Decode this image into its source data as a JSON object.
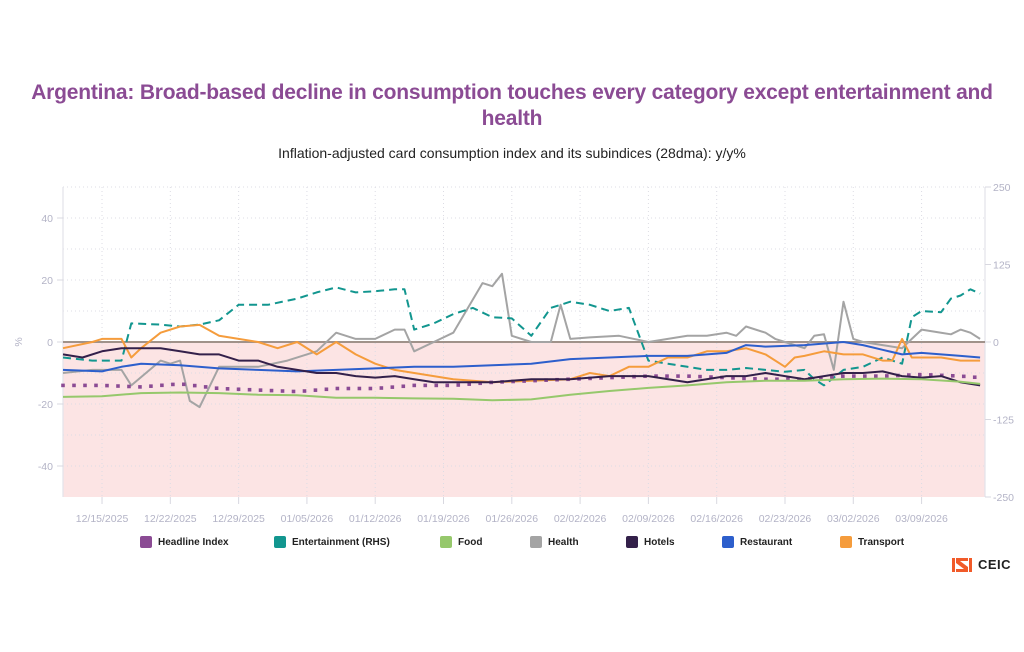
{
  "header": {
    "title": "Argentina: Broad-based decline in consumption touches every category except entertainment and health",
    "subtitle": "Inflation-adjusted card consumption index and its subindices (28dma): y/y%"
  },
  "brand": {
    "logo_text": "CEIC",
    "logo_color": "#f15a29"
  },
  "chart_data": {
    "type": "line",
    "title": "Argentina: Broad-based decline in consumption touches every category except entertainment and health",
    "subtitle": "Inflation-adjusted card consumption index and its subindices (28dma): y/y%",
    "xlabel": "",
    "ylabel": "%",
    "ylabel_right": "",
    "x_start_date": "12/11/2025",
    "x_unit": "days since 12/11/2025",
    "xlim": [
      0,
      94.5
    ],
    "ylim": [
      -50,
      50
    ],
    "ylim_right": [
      -250,
      250
    ],
    "y_ticks": [
      40,
      20,
      0,
      -20,
      -40
    ],
    "y_ticks_right": [
      250,
      125,
      0,
      -125,
      -250
    ],
    "x_ticks": [
      {
        "day": 4,
        "label": "12/15/2025"
      },
      {
        "day": 11,
        "label": "12/22/2025"
      },
      {
        "day": 18,
        "label": "12/29/2025"
      },
      {
        "day": 25,
        "label": "01/05/2026"
      },
      {
        "day": 32,
        "label": "01/12/2026"
      },
      {
        "day": 39,
        "label": "01/19/2026"
      },
      {
        "day": 46,
        "label": "01/26/2026"
      },
      {
        "day": 53,
        "label": "02/02/2026"
      },
      {
        "day": 60,
        "label": "02/09/2026"
      },
      {
        "day": 67,
        "label": "02/16/2026"
      },
      {
        "day": 74,
        "label": "02/23/2026"
      },
      {
        "day": 81,
        "label": "03/02/2026"
      },
      {
        "day": 88,
        "label": "03/09/2026"
      }
    ],
    "grid": true,
    "negative_region_shaded": true,
    "legend_position": "bottom",
    "series": [
      {
        "name": "Headline Index",
        "color": "#8b4b94",
        "style": "dotted",
        "axis": "left",
        "x": [
          0,
          4,
          8,
          12,
          16,
          20,
          24,
          28,
          32,
          36,
          40,
          44,
          48,
          52,
          56,
          60,
          64,
          68,
          72,
          76,
          80,
          84,
          88,
          92,
          94
        ],
        "values": [
          -14,
          -14,
          -14.5,
          -13.5,
          -15,
          -15.5,
          -16,
          -15,
          -15,
          -14,
          -14,
          -13,
          -12.5,
          -12,
          -11.5,
          -11,
          -11,
          -11.5,
          -12,
          -12,
          -11,
          -11,
          -10.5,
          -11,
          -11.5
        ]
      },
      {
        "name": "Entertainment (RHS)",
        "color": "#12968f",
        "style": "dashed",
        "axis": "right",
        "x": [
          0,
          3,
          6,
          7,
          10,
          12,
          14,
          16,
          18,
          21,
          24,
          26,
          28,
          30,
          32,
          34,
          35,
          36,
          38,
          40,
          42,
          44,
          46,
          48,
          50,
          52,
          54,
          56,
          58,
          60,
          62,
          64,
          66,
          68,
          70,
          72,
          74,
          76,
          77,
          78,
          80,
          82,
          84,
          85,
          86,
          87,
          88,
          90,
          91,
          92,
          93,
          94
        ],
        "values": [
          -25,
          -30,
          -30,
          30,
          28,
          25,
          28,
          35,
          60,
          60,
          70,
          80,
          88,
          80,
          82,
          85,
          85,
          20,
          30,
          45,
          55,
          40,
          38,
          10,
          55,
          65,
          60,
          50,
          55,
          -30,
          -35,
          -40,
          -45,
          -45,
          -42,
          -45,
          -48,
          -45,
          -60,
          -70,
          -45,
          -40,
          -25,
          -30,
          -35,
          40,
          50,
          48,
          70,
          75,
          85,
          78
        ]
      },
      {
        "name": "Food",
        "color": "#96c86c",
        "style": "solid",
        "axis": "left",
        "x": [
          0,
          4,
          8,
          12,
          16,
          20,
          24,
          28,
          32,
          36,
          40,
          44,
          48,
          52,
          56,
          60,
          64,
          68,
          72,
          76,
          80,
          84,
          88,
          92,
          94
        ],
        "values": [
          -17.7,
          -17.5,
          -16.5,
          -16.3,
          -16.5,
          -17,
          -17.2,
          -18,
          -18,
          -18.2,
          -18.3,
          -18.8,
          -18.5,
          -17,
          -15.8,
          -14.8,
          -14,
          -13,
          -12.5,
          -12.5,
          -12,
          -11.8,
          -12,
          -12.8,
          -13.5
        ]
      },
      {
        "name": "Health",
        "color": "#a4a4a4",
        "style": "solid",
        "axis": "left",
        "x": [
          0,
          3,
          6,
          7,
          10,
          11,
          12,
          13,
          14,
          16,
          20,
          23,
          26,
          28,
          30,
          32,
          34,
          35,
          36,
          38,
          40,
          43,
          44,
          45,
          46,
          48,
          50,
          51,
          52,
          54,
          57,
          60,
          62,
          64,
          66,
          68,
          69,
          70,
          72,
          73,
          74,
          76,
          77,
          78,
          79,
          80,
          81,
          82,
          84,
          86,
          87,
          88,
          90,
          91,
          92,
          93,
          94
        ],
        "values": [
          -10,
          -9,
          -9,
          -14,
          -6,
          -7,
          -6,
          -19,
          -21,
          -8,
          -8,
          -6,
          -3,
          3,
          1,
          1,
          4,
          4,
          -3,
          0,
          3,
          19,
          18,
          22,
          2,
          0,
          0,
          12,
          1,
          1.5,
          2,
          0,
          1,
          2,
          2,
          3,
          2,
          5,
          3,
          1,
          0,
          -2,
          2,
          2.5,
          -9,
          13,
          1,
          0,
          -1,
          -2,
          1,
          4,
          3,
          2.5,
          4,
          3,
          1
        ]
      },
      {
        "name": "Hotels",
        "color": "#33204a",
        "style": "solid",
        "axis": "left",
        "x": [
          0,
          2,
          4,
          6,
          8,
          10,
          12,
          14,
          16,
          18,
          20,
          22,
          24,
          26,
          28,
          30,
          32,
          34,
          36,
          38,
          40,
          44,
          48,
          52,
          56,
          60,
          64,
          68,
          70,
          72,
          74,
          76,
          78,
          80,
          82,
          84,
          86,
          88,
          90,
          92,
          94
        ],
        "values": [
          -4,
          -5,
          -3,
          -2,
          -2,
          -2,
          -3,
          -4,
          -4,
          -6,
          -6,
          -8,
          -9,
          -10,
          -10,
          -11,
          -11.5,
          -11,
          -12,
          -13,
          -13,
          -13,
          -12,
          -12,
          -11,
          -11,
          -13,
          -11,
          -11,
          -10,
          -11,
          -12,
          -11,
          -10,
          -10,
          -9.5,
          -11,
          -11.5,
          -11,
          -13,
          -14
        ]
      },
      {
        "name": "Restaurant",
        "color": "#2d5fcc",
        "style": "solid",
        "axis": "left",
        "x": [
          0,
          4,
          6,
          8,
          12,
          16,
          20,
          24,
          28,
          32,
          36,
          40,
          44,
          48,
          52,
          56,
          60,
          64,
          68,
          70,
          72,
          76,
          80,
          82,
          84,
          86,
          88,
          92,
          94
        ],
        "values": [
          -9,
          -9.5,
          -8,
          -7,
          -7.5,
          -8.5,
          -9,
          -9.5,
          -9,
          -8.5,
          -8,
          -8,
          -7.5,
          -7,
          -5.5,
          -5,
          -4.5,
          -4.5,
          -3.5,
          -1,
          -1.5,
          -1,
          0,
          -1,
          -2.5,
          -4,
          -3.5,
          -4.5,
          -5
        ]
      },
      {
        "name": "Transport",
        "color": "#f59c3c",
        "style": "solid",
        "axis": "left",
        "x": [
          0,
          3,
          4,
          6,
          7,
          8,
          10,
          12,
          14,
          16,
          18,
          20,
          22,
          24,
          26,
          28,
          30,
          32,
          34,
          36,
          40,
          44,
          48,
          52,
          54,
          56,
          58,
          60,
          62,
          64,
          66,
          68,
          70,
          72,
          74,
          75,
          76,
          78,
          80,
          82,
          84,
          85,
          86,
          87,
          88,
          90,
          92,
          94
        ],
        "values": [
          -2,
          0,
          1,
          1,
          -5,
          -2,
          3,
          5,
          5.5,
          2,
          1,
          0,
          -2,
          0,
          -4,
          0,
          -4,
          -7,
          -9,
          -10,
          -12,
          -13,
          -12.5,
          -12,
          -10,
          -11,
          -8,
          -8,
          -5,
          -5,
          -3,
          -3,
          -2,
          -4,
          -8,
          -5,
          -4.5,
          -3,
          -4,
          -4,
          -6,
          -6,
          1,
          -5,
          -5,
          -5,
          -6,
          -6
        ]
      }
    ]
  }
}
